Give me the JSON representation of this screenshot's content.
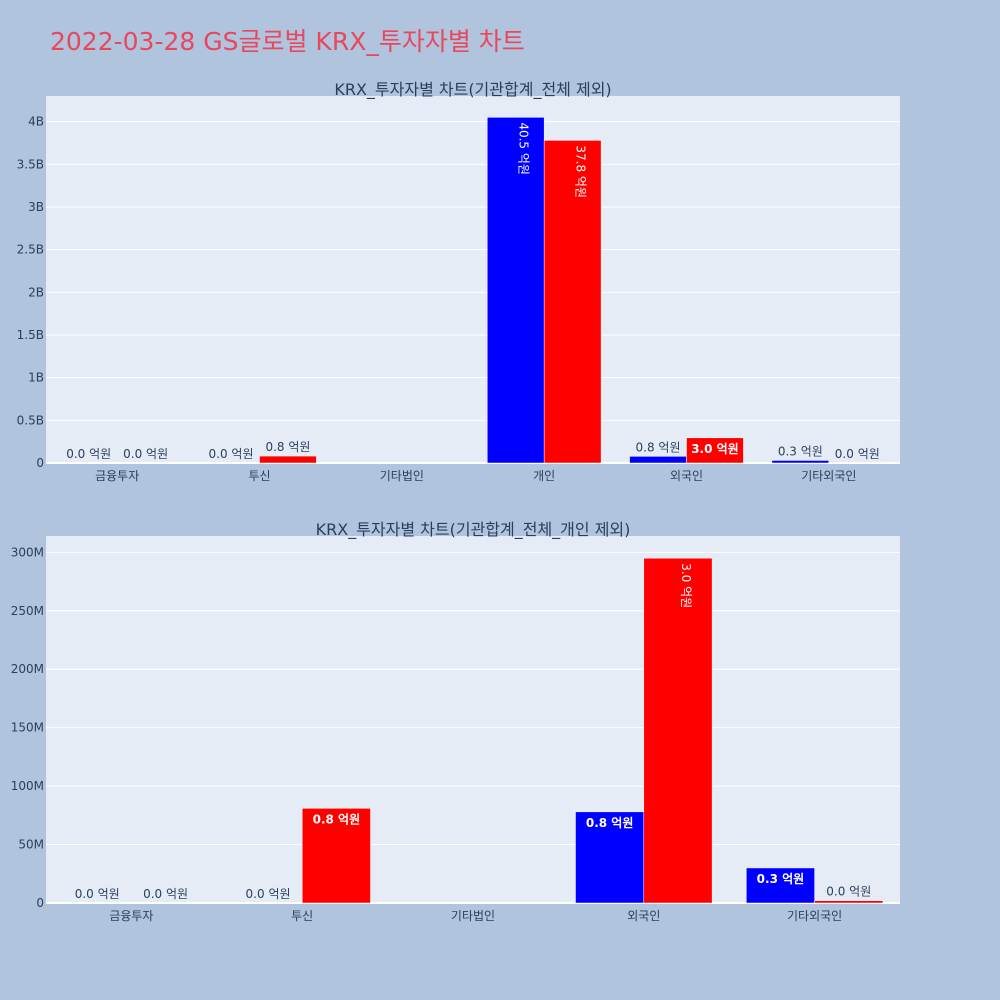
{
  "page_title": "2022-03-28 GS글로벌 KRX_투자자별 차트",
  "colors": {
    "buy": "#0000ff",
    "sell": "#ff0000",
    "plot_bg": "#e5ecf6",
    "page_bg": "#b0c4de",
    "title": "#e8475c"
  },
  "chart_data": [
    {
      "type": "bar",
      "title": "KRX_투자자별 차트(기관합계_전체 제외)",
      "categories": [
        "금융투자",
        "투신",
        "기타법인",
        "개인",
        "외국인",
        "기타외국인"
      ],
      "ylim": [
        0,
        4300000000
      ],
      "yticks": [
        0,
        500000000,
        1000000000,
        1500000000,
        2000000000,
        2500000000,
        3000000000,
        3500000000,
        4000000000
      ],
      "yticklabels": [
        "0",
        "0.5B",
        "1B",
        "1.5B",
        "2B",
        "2.5B",
        "3B",
        "3.5B",
        "4B"
      ],
      "grid": true,
      "series": [
        {
          "values": [
            0,
            0,
            null,
            4050000000,
            78000000,
            30000000
          ],
          "labels": [
            "0.0 억원",
            "0.0 억원",
            "",
            "40.5 억원",
            "0.8 억원",
            "0.3 억원"
          ]
        },
        {
          "values": [
            0,
            81000000,
            null,
            3780000000,
            295000000,
            2000000
          ],
          "labels": [
            "0.0 억원",
            "0.8 억원",
            "",
            "37.8 억원",
            "3.0 억원",
            "0.0 억원"
          ]
        }
      ]
    },
    {
      "type": "bar",
      "title": "KRX_투자자별 차트(기관합계_전체_개인 제외)",
      "categories": [
        "금융투자",
        "투신",
        "기타법인",
        "외국인",
        "기타외국인"
      ],
      "ylim": [
        0,
        314000000
      ],
      "yticks": [
        0,
        50000000,
        100000000,
        150000000,
        200000000,
        250000000,
        300000000
      ],
      "yticklabels": [
        "0",
        "50M",
        "100M",
        "150M",
        "200M",
        "250M",
        "300M"
      ],
      "grid": true,
      "series": [
        {
          "values": [
            0,
            0,
            null,
            78000000,
            30000000
          ],
          "labels": [
            "0.0 억원",
            "0.0 억원",
            "",
            "0.8 억원",
            "0.3 억원"
          ]
        },
        {
          "values": [
            0,
            81000000,
            null,
            295000000,
            2000000
          ],
          "labels": [
            "0.0 억원",
            "0.8 억원",
            "",
            "3.0 억원",
            "0.0 억원"
          ]
        }
      ]
    }
  ]
}
